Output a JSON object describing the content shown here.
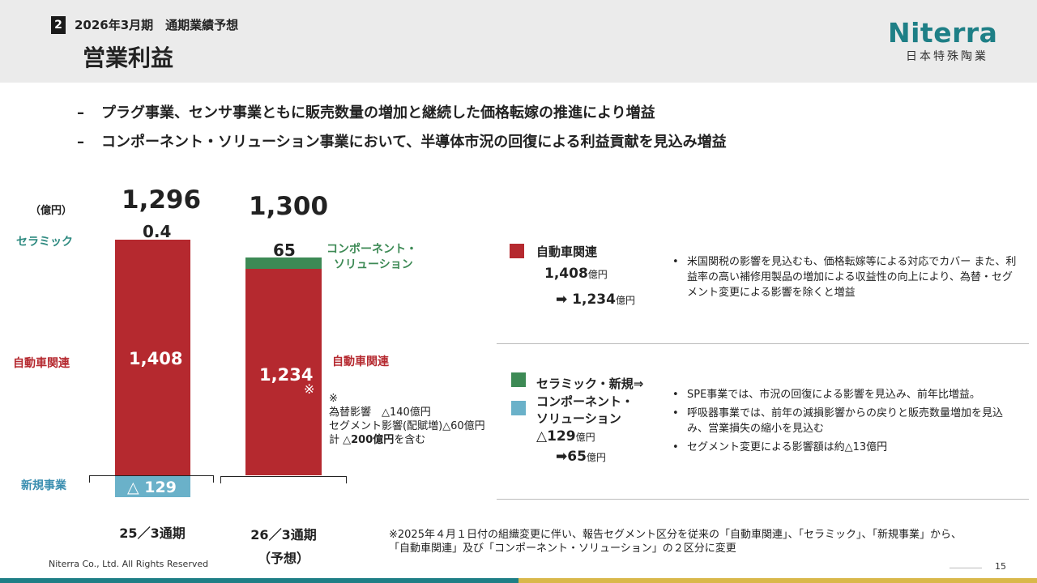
{
  "header": {
    "section_number": "2",
    "section_title": "2026年3月期　通期業績予想",
    "page_title": "営業利益",
    "logo_main": "Niterra",
    "logo_sub": "日本特殊陶業"
  },
  "bullets": [
    {
      "dash": "–",
      "text": "プラグ事業、センサ事業ともに販売数量の増加と継続した価格転嫁の推進により増益"
    },
    {
      "dash": "–",
      "text": "コンポーネント・ソリューション事業において、半導体市況の回復による利益貢献を見込み増益"
    }
  ],
  "chart_data": {
    "type": "bar",
    "unit": "（億円）",
    "categories": [
      "25／3通期",
      "26／3通期\n（予想）"
    ],
    "category_line1": [
      "25／3通期",
      "26／3通期"
    ],
    "category_line2": [
      "",
      "（予想）"
    ],
    "totals": [
      "1,296",
      "1,300"
    ],
    "series": [
      {
        "name": "自動車関連",
        "values": [
          1408,
          1234
        ],
        "labels": [
          "1,408",
          "1,234"
        ],
        "color": "#b5292f"
      },
      {
        "name": "セラミック",
        "values": [
          0.4,
          null
        ],
        "labels": [
          "0.4",
          ""
        ],
        "color": "#2e8a80"
      },
      {
        "name": "新規事業",
        "values": [
          -129,
          null
        ],
        "labels": [
          "△ 129",
          ""
        ],
        "color": "#6ab1c9"
      },
      {
        "name": "コンポーネント・\nソリューション",
        "values": [
          null,
          65
        ],
        "labels": [
          "",
          "65"
        ],
        "color": "#3d8a55"
      }
    ],
    "segment_labels": {
      "ceramic": "セラミック",
      "auto_left": "自動車関連",
      "new_business": "新規事業",
      "component_line1": "コンポーネント・",
      "component_line2": "ソリューション",
      "auto_right": "自動車関連"
    },
    "note_mark": "※",
    "fx_note": {
      "mark": "※",
      "line1": "為替影響　△140億円",
      "line2": "セグメント影響(配賦増)△60億円",
      "line3_prefix": "計 △",
      "line3_bold": "200億円",
      "line3_suffix": "を含む"
    }
  },
  "right_panel": {
    "auto": {
      "title": "自動車関連",
      "value_from": "1,408",
      "value_to": "1,234",
      "unit": "億円",
      "arrow": "➡",
      "color": "#b5292f",
      "notes": [
        "米国関税の影響を見込むも、価格転嫁等による対応でカバー また、利益率の高い補修用製品の増加による収益性の向上により、為替・セグメント変更による影響を除くと増益"
      ]
    },
    "component": {
      "title_line1": "セラミック・新規⇒",
      "title_line2": "コンポーネント・",
      "title_line3": "ソリューション",
      "value_from": "△129",
      "value_to": "65",
      "unit": "億円",
      "arrow": "➡",
      "color_green": "#3d8a55",
      "color_blue": "#6ab1c9",
      "notes": [
        "SPE事業では、市況の回復による影響を見込み、前年比増益。",
        "呼吸器事業では、前年の減損影響からの戻りと販売数量増加を見込み、営業損失の縮小を見込む",
        "セグメント変更による影響額は約△13億円"
      ]
    }
  },
  "footer": {
    "footnote_line1": "※2025年４月１日付の組織変更に伴い、報告セグメント区分を従来の「自動車関連」、「セラミック」、「新規事業」から、",
    "footnote_line2": "「自動車関連」及び「コンポーネント・ソリューション」の２区分に変更",
    "copyright": "Niterra Co., Ltd. All Rights Reserved",
    "page_number": "15"
  }
}
